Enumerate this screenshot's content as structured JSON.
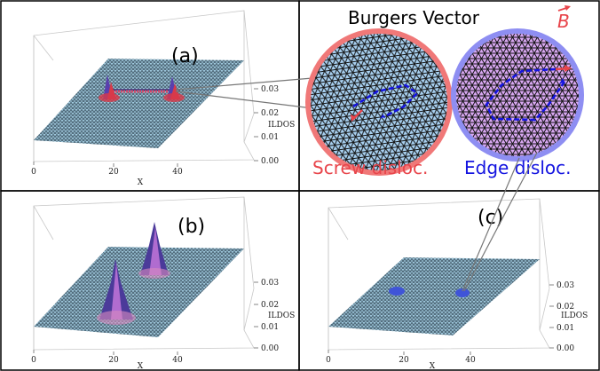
{
  "panels": {
    "a": {
      "label": "(a)"
    },
    "b": {
      "label": "(b)"
    },
    "c": {
      "label": "(c)"
    }
  },
  "axes": {
    "x_title": "X",
    "z_title": "ILDOS",
    "x_ticks": [
      "0",
      "20",
      "40"
    ],
    "z_ticks": [
      "0.00",
      "0.01",
      "0.02",
      "0.03"
    ]
  },
  "zoom": {
    "title": "Burgers Vector",
    "vector_symbol": "B",
    "screw_caption": "Screw disloc.",
    "edge_caption": "Edge disloc."
  },
  "colors": {
    "surface_fill": "#9fc8dc",
    "mesh": "#1c2c3a",
    "peak_core": "#4b3a9a",
    "peak_red": "#d83a4a",
    "screw": "#e8454b",
    "edge": "#1414e0",
    "screw_disc": "#a8d0f0",
    "edge_disc": "#d9a8f2",
    "screw_ring": "#f07878",
    "edge_ring": "#8e8ef2"
  }
}
